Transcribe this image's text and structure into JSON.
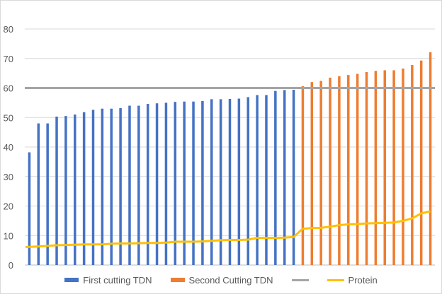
{
  "chart_data": {
    "type": "bar",
    "title": "",
    "xlabel": "",
    "ylabel": "",
    "ylim": [
      0,
      80
    ],
    "yticks": [
      0,
      10,
      20,
      30,
      40,
      50,
      60,
      70,
      80
    ],
    "grid": "horizontal",
    "legend_position": "bottom",
    "series": [
      {
        "name": "First cutting TDN",
        "kind": "bar",
        "color": "#4472C4",
        "values": [
          38.2,
          48,
          48,
          50.3,
          50.5,
          51,
          51.8,
          52.6,
          53,
          53,
          53.2,
          54,
          54,
          54.6,
          54.8,
          55,
          55.3,
          55.4,
          55.4,
          55.6,
          56.2,
          56.2,
          56.3,
          56.4,
          56.9,
          57.6,
          57.6,
          59,
          59.3,
          59.4
        ]
      },
      {
        "name": "Second Cutting TDN",
        "kind": "bar",
        "color": "#ED7D31",
        "values": [
          60.6,
          62,
          62.4,
          63.5,
          64,
          64.4,
          64.8,
          65.4,
          65.8,
          66,
          66,
          66.6,
          67.8,
          69.3,
          72.1
        ]
      },
      {
        "name": "",
        "kind": "line",
        "color": "#A5A5A5",
        "values": [
          60,
          60
        ]
      },
      {
        "name": "Protein",
        "kind": "line",
        "color": "#FFC000",
        "values": [
          6.1,
          6.3,
          6.5,
          6.7,
          6.8,
          6.9,
          7,
          7,
          7,
          7.2,
          7.3,
          7.3,
          7.4,
          7.5,
          7.5,
          7.6,
          7.9,
          7.9,
          7.9,
          8,
          8.2,
          8.4,
          8.5,
          8.5,
          8.6,
          9.2,
          9.2,
          9.2,
          9.3,
          9.5,
          12.3,
          12.5,
          12.6,
          13,
          13.5,
          13.8,
          13.9,
          14.1,
          14.2,
          14.3,
          14.4,
          15,
          15.8,
          17.5,
          18.2
        ]
      }
    ]
  }
}
